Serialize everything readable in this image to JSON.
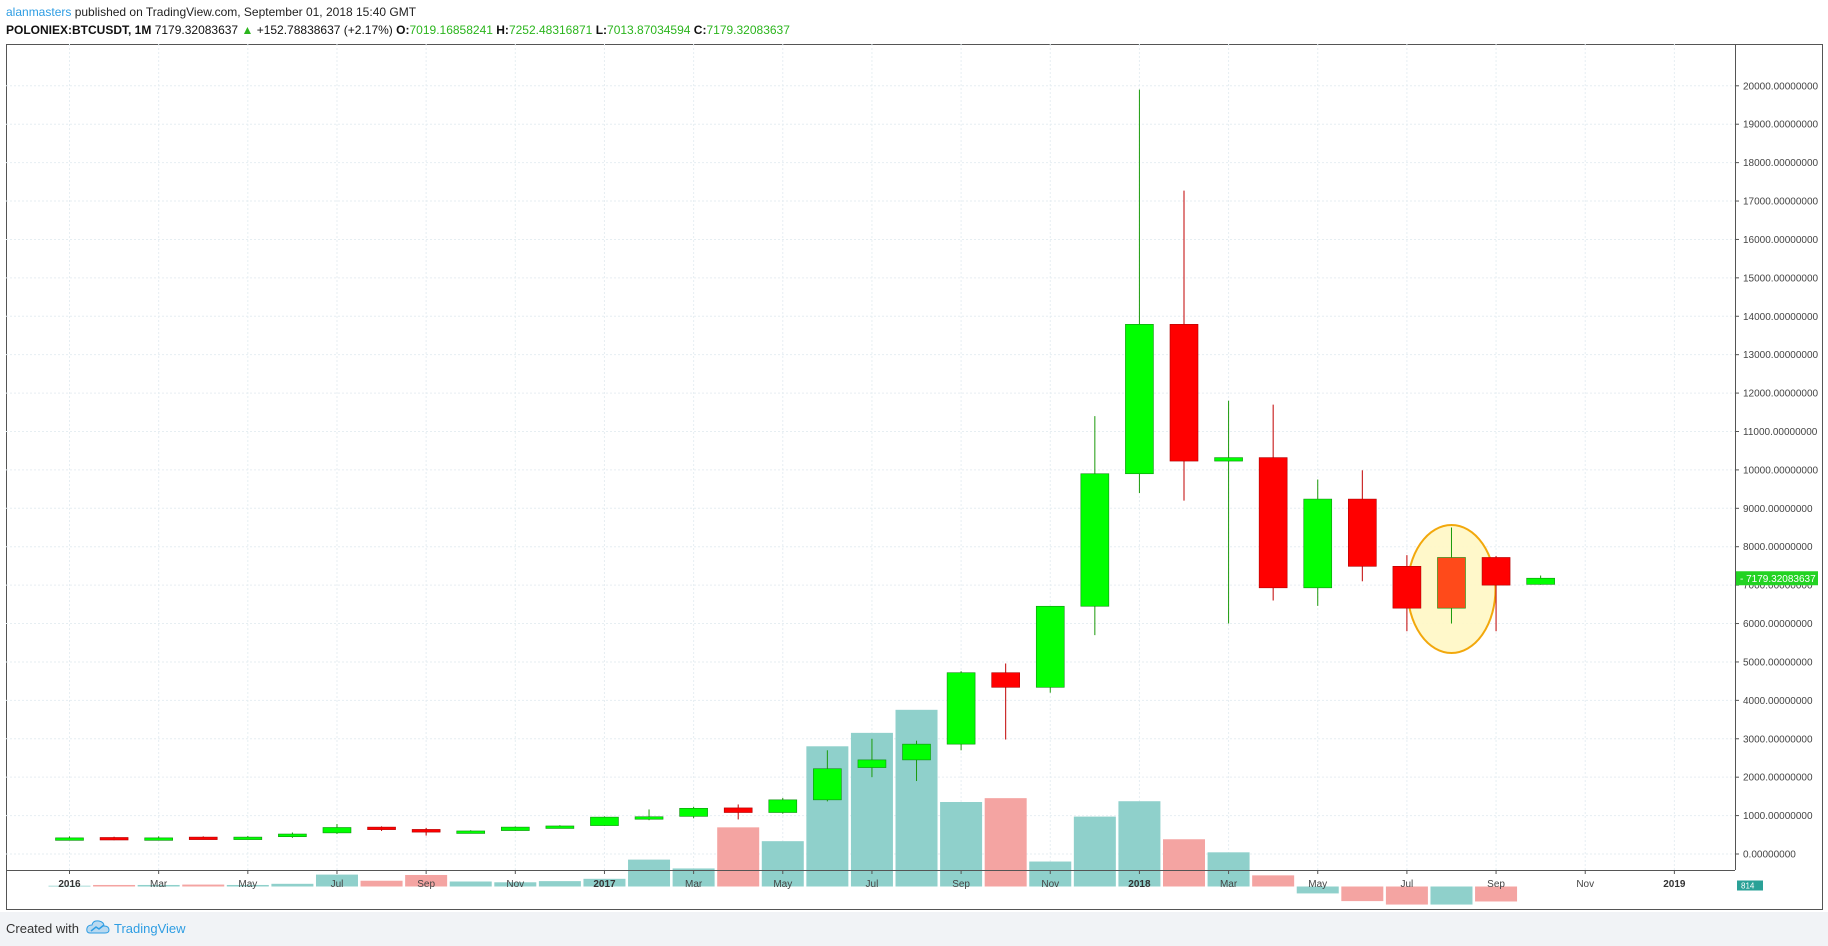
{
  "header": {
    "author": "alanmasters",
    "published_text": " published on TradingView.com, September 01, 2018 15:40 GMT"
  },
  "symbol_line": {
    "symbol": "POLONIEX:BTCUSDT, 1M",
    "last": "7179.32083637",
    "change_arrow": "▲",
    "change": "+152.78838637 (+2.17%)",
    "open_key": "O:",
    "open": "7019.16858241",
    "high_key": "H:",
    "high": "7252.48316871",
    "low_key": "L:",
    "low": "7013.87034594",
    "close_key": "C:",
    "close": "7179.32083637"
  },
  "footer": {
    "created_with": "Created with",
    "brand": "TradingView"
  },
  "colors": {
    "up": "#00ff00",
    "down": "#ff0000",
    "vol_up": "#8fd0cb",
    "vol_down": "#f4a4a2",
    "highlight_fill": "#fff8c8",
    "highlight_stroke": "#f2a400",
    "price_tag": "#22d322"
  },
  "price_tag": "7179.32083637",
  "volume_tag": "814",
  "chart_data": {
    "type": "candlestick",
    "y_ticks": [
      "20000.00000000",
      "19000.00000000",
      "18000.00000000",
      "17000.00000000",
      "16000.00000000",
      "15000.00000000",
      "14000.00000000",
      "13000.00000000",
      "12000.00000000",
      "11000.00000000",
      "10000.00000000",
      "9000.00000000",
      "8000.00000000",
      "7000.00000000",
      "6000.00000000",
      "5000.00000000",
      "4000.00000000",
      "3000.00000000",
      "2000.00000000",
      "1000.00000000",
      "0.00000000"
    ],
    "x_ticks": [
      {
        "label": "2016",
        "bold": true,
        "i": 0
      },
      {
        "label": "Mar",
        "bold": false,
        "i": 2
      },
      {
        "label": "May",
        "bold": false,
        "i": 4
      },
      {
        "label": "Jul",
        "bold": false,
        "i": 6
      },
      {
        "label": "Sep",
        "bold": false,
        "i": 8
      },
      {
        "label": "Nov",
        "bold": false,
        "i": 10
      },
      {
        "label": "2017",
        "bold": true,
        "i": 12
      },
      {
        "label": "Mar",
        "bold": false,
        "i": 14
      },
      {
        "label": "May",
        "bold": false,
        "i": 16
      },
      {
        "label": "Jul",
        "bold": false,
        "i": 18
      },
      {
        "label": "Sep",
        "bold": false,
        "i": 20
      },
      {
        "label": "Nov",
        "bold": false,
        "i": 22
      },
      {
        "label": "2018",
        "bold": true,
        "i": 24
      },
      {
        "label": "Mar",
        "bold": false,
        "i": 26
      },
      {
        "label": "May",
        "bold": false,
        "i": 28
      },
      {
        "label": "Jul",
        "bold": false,
        "i": 30
      },
      {
        "label": "Sep",
        "bold": false,
        "i": 32
      },
      {
        "label": "Nov",
        "bold": false,
        "i": 34
      },
      {
        "label": "2019",
        "bold": true,
        "i": 36
      }
    ],
    "ylim": [
      0,
      20000
    ],
    "highlight_index": 31,
    "candles": [
      {
        "o": 380,
        "h": 460,
        "l": 360,
        "c": 420,
        "v": 20
      },
      {
        "o": 430,
        "h": 450,
        "l": 360,
        "c": 380,
        "v": 40
      },
      {
        "o": 380,
        "h": 460,
        "l": 360,
        "c": 420,
        "v": 40
      },
      {
        "o": 440,
        "h": 460,
        "l": 400,
        "c": 410,
        "v": 50
      },
      {
        "o": 420,
        "h": 470,
        "l": 400,
        "c": 440,
        "v": 40
      },
      {
        "o": 450,
        "h": 560,
        "l": 420,
        "c": 520,
        "v": 70
      },
      {
        "o": 550,
        "h": 780,
        "l": 520,
        "c": 690,
        "v": 310
      },
      {
        "o": 700,
        "h": 720,
        "l": 600,
        "c": 640,
        "v": 150
      },
      {
        "o": 640,
        "h": 680,
        "l": 480,
        "c": 570,
        "v": 300
      },
      {
        "o": 570,
        "h": 620,
        "l": 550,
        "c": 600,
        "v": 130
      },
      {
        "o": 610,
        "h": 720,
        "l": 600,
        "c": 700,
        "v": 110
      },
      {
        "o": 700,
        "h": 750,
        "l": 680,
        "c": 730,
        "v": 140
      },
      {
        "o": 740,
        "h": 980,
        "l": 730,
        "c": 960,
        "v": 200
      },
      {
        "o": 960,
        "h": 1160,
        "l": 880,
        "c": 970,
        "v": 700
      },
      {
        "o": 980,
        "h": 1230,
        "l": 930,
        "c": 1190,
        "v": 470
      },
      {
        "o": 1200,
        "h": 1290,
        "l": 900,
        "c": 1080,
        "v": 1540
      },
      {
        "o": 1080,
        "h": 1460,
        "l": 1050,
        "c": 1410,
        "v": 1180
      },
      {
        "o": 1410,
        "h": 2700,
        "l": 1370,
        "c": 2220,
        "v": 3650
      },
      {
        "o": 2250,
        "h": 3000,
        "l": 2000,
        "c": 2450,
        "v": 4000
      },
      {
        "o": 2450,
        "h": 2950,
        "l": 1900,
        "c": 2860,
        "v": 4600
      },
      {
        "o": 2860,
        "h": 4760,
        "l": 2700,
        "c": 4720,
        "v": 2200
      },
      {
        "o": 4720,
        "h": 4960,
        "l": 2980,
        "c": 4340,
        "v": 2300
      },
      {
        "o": 4340,
        "h": 6450,
        "l": 4200,
        "c": 6450,
        "v": 650
      },
      {
        "o": 6450,
        "h": 11400,
        "l": 5700,
        "c": 9900,
        "v": 1820
      },
      {
        "o": 9900,
        "h": 19900,
        "l": 9400,
        "c": 13790,
        "v": 2220
      },
      {
        "o": 13790,
        "h": 17270,
        "l": 9200,
        "c": 10230,
        "v": 1230
      },
      {
        "o": 10230,
        "h": 11800,
        "l": 6000,
        "c": 10320,
        "v": 890
      },
      {
        "o": 10320,
        "h": 11700,
        "l": 6600,
        "c": 6930,
        "v": 290
      },
      {
        "o": 6930,
        "h": 9750,
        "l": 6460,
        "c": 9240,
        "v": -180
      },
      {
        "o": 9240,
        "h": 9990,
        "l": 7100,
        "c": 7490,
        "v": -380
      },
      {
        "o": 7490,
        "h": 7780,
        "l": 5800,
        "c": 6400,
        "v": -470
      },
      {
        "o": 6400,
        "h": 8500,
        "l": 6000,
        "c": 7720,
        "v": -470
      },
      {
        "o": 7720,
        "h": 7760,
        "l": 5800,
        "c": 7000,
        "v": -390
      },
      {
        "o": 7020,
        "h": 7250,
        "l": 7010,
        "c": 7180,
        "v": 0
      }
    ]
  }
}
